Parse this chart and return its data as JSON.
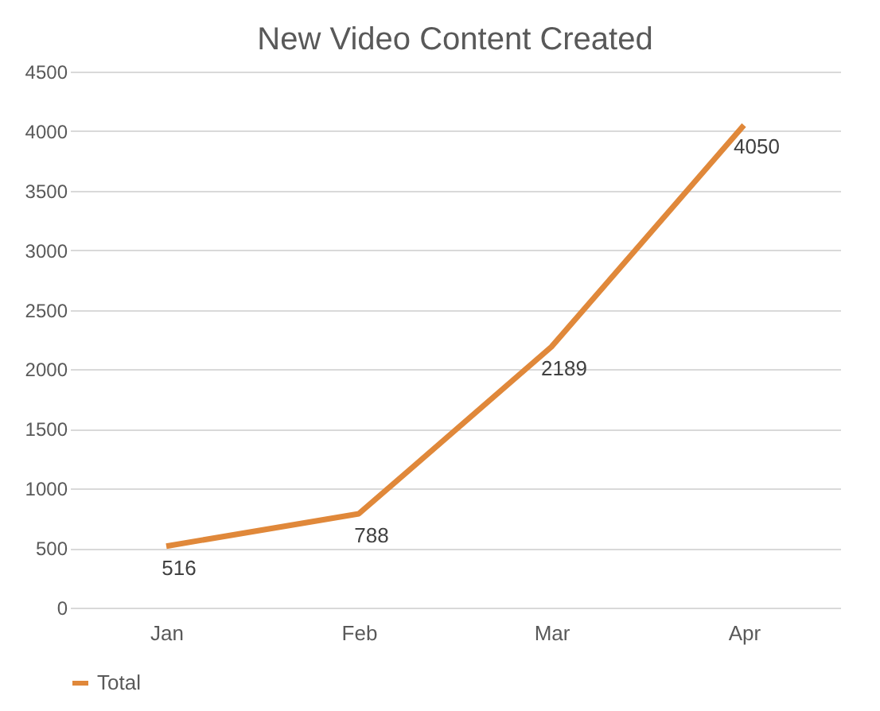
{
  "chart_data": {
    "type": "line",
    "title": "New Video Content Created",
    "categories": [
      "Jan",
      "Feb",
      "Mar",
      "Apr"
    ],
    "series": [
      {
        "name": "Total",
        "color": "#e0883a",
        "values": [
          516,
          788,
          2189,
          4050
        ]
      }
    ],
    "ylim": [
      0,
      4500
    ],
    "yticks": [
      0,
      500,
      1000,
      1500,
      2000,
      2500,
      3000,
      3500,
      4000,
      4500
    ],
    "grid": "y",
    "legend": "bottom",
    "data_labels": true,
    "marker": "none",
    "line_style": "solid"
  }
}
